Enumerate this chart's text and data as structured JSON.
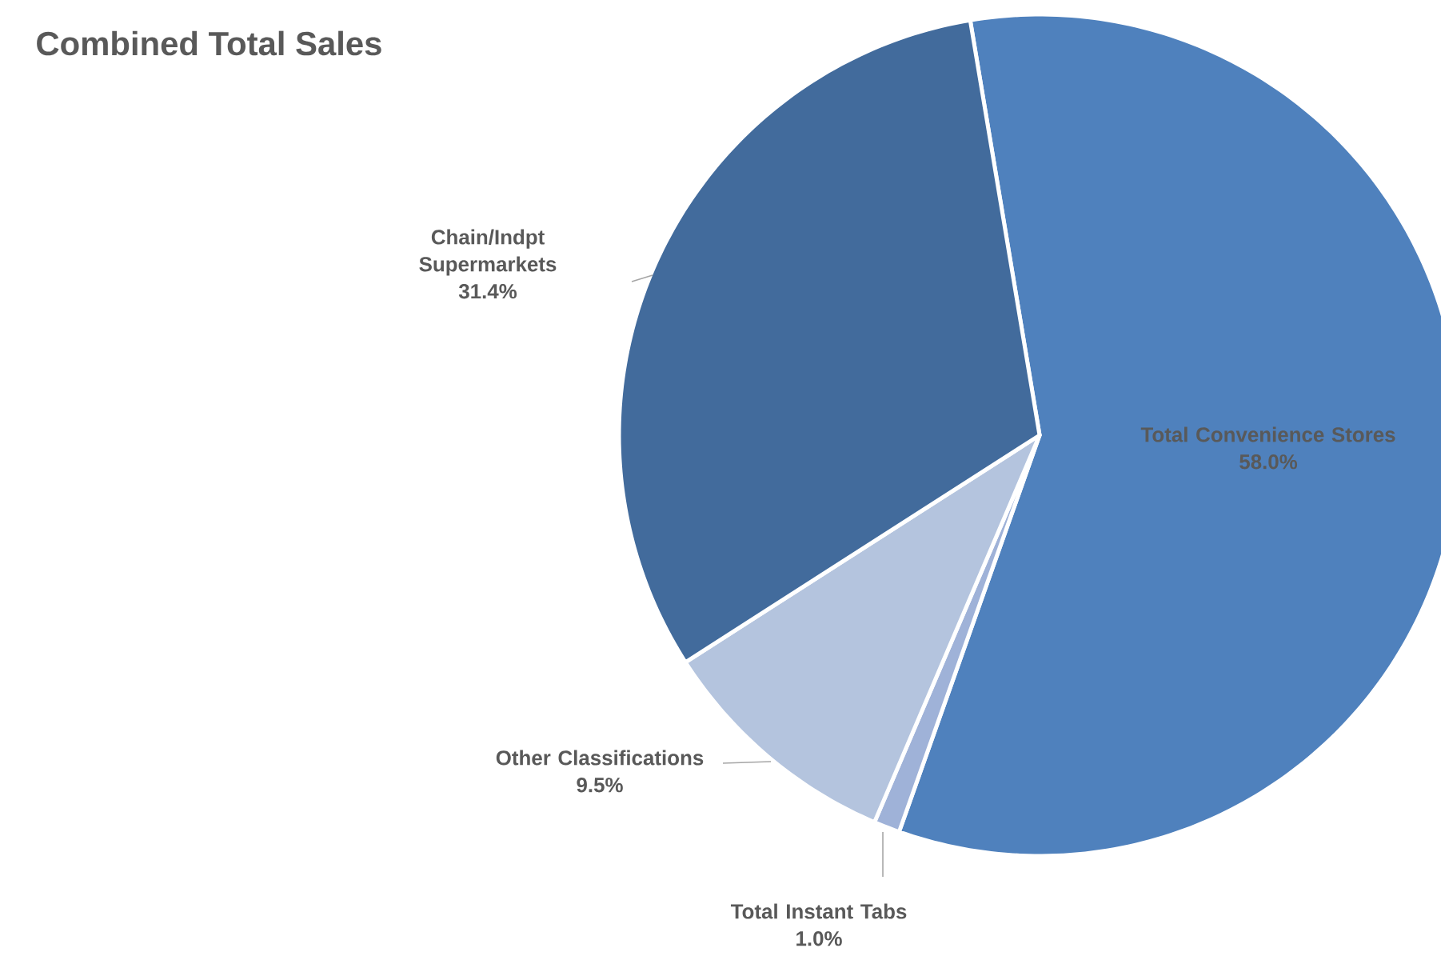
{
  "chart_data": {
    "type": "pie",
    "title": "Combined Total Sales",
    "categories": [
      "Total Convenience Stores",
      "Total Instant Tabs",
      "Other Classifications",
      "Chain/Indpt Supermarkets"
    ],
    "values": [
      58.0,
      1.0,
      9.5,
      31.4
    ],
    "value_labels": [
      "58.0%",
      "1.0%",
      "9.5%",
      "31.4%"
    ],
    "colors": [
      "#4f81bd",
      "#9fb2d8",
      "#b4c4de",
      "#426b9c"
    ]
  }
}
